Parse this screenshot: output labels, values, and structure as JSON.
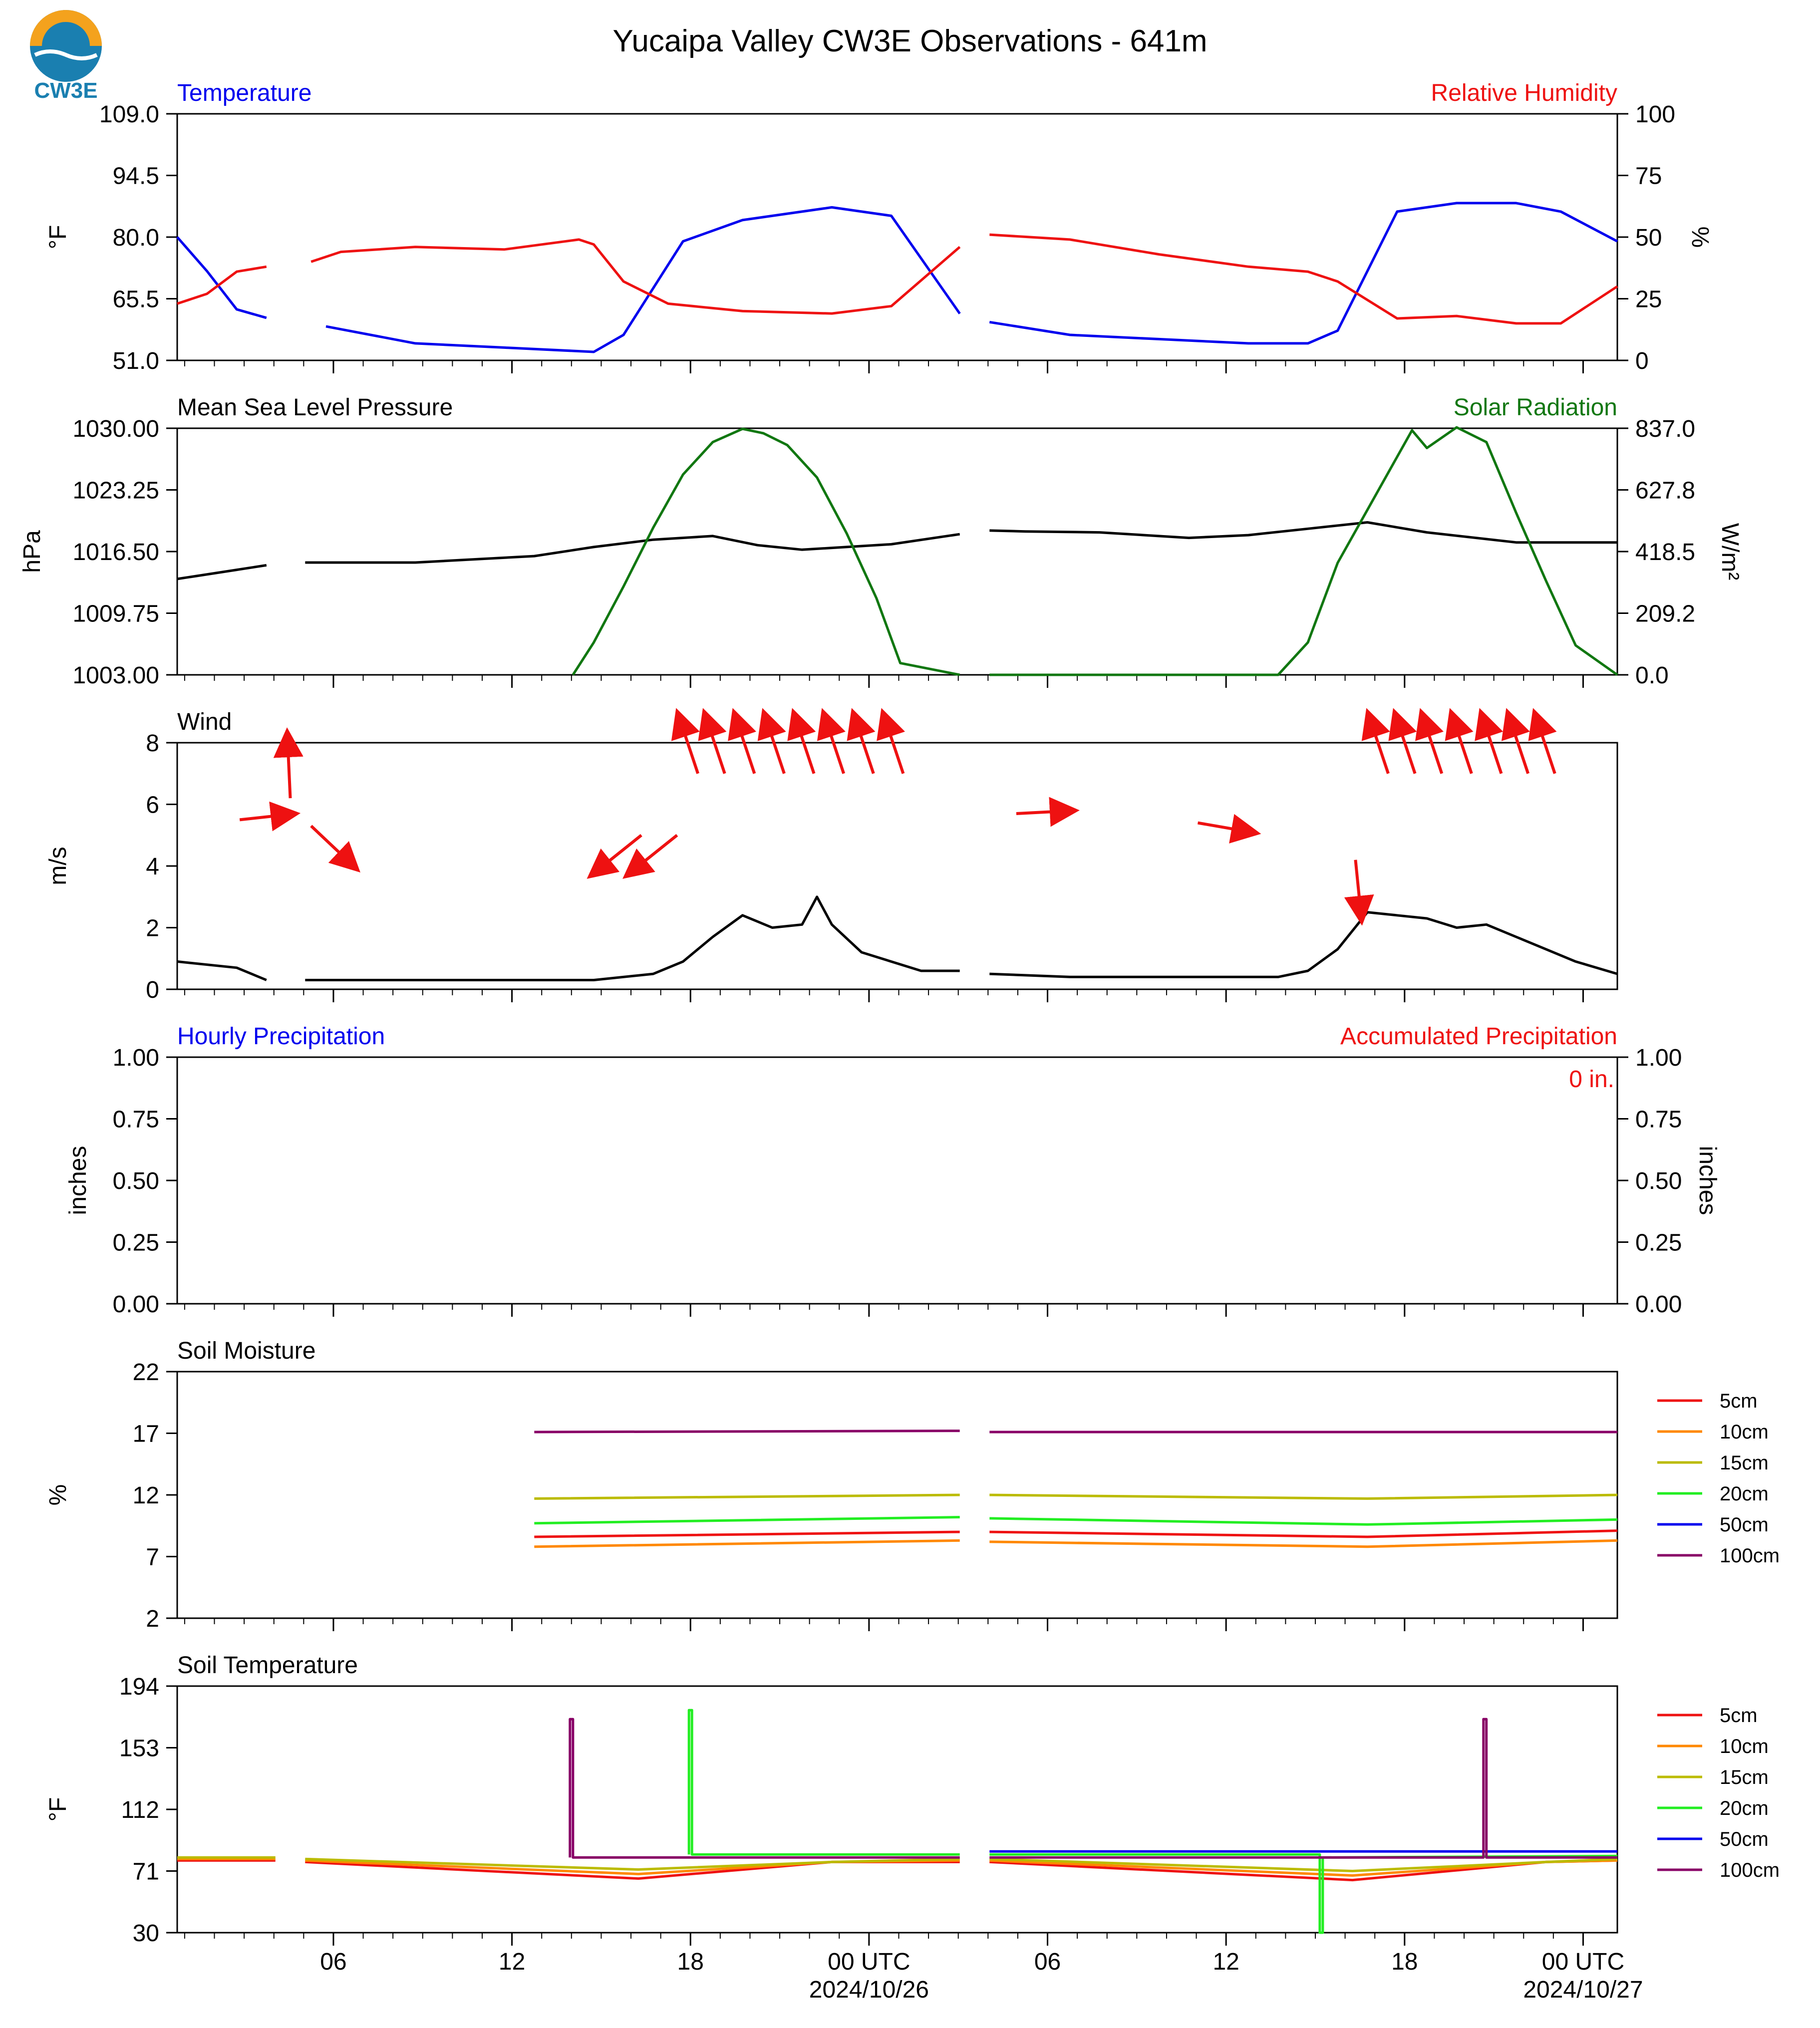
{
  "page": {
    "title": "Yucaipa Valley CW3E Observations - 641m",
    "logo_text": "CW3E",
    "colors": {
      "blue": "#0000ee",
      "red": "#ee1111",
      "green": "#117711",
      "black": "#000000",
      "logo": "#1a7fb0",
      "logo_orange": "#f4a21d"
    }
  },
  "time_axis": {
    "start_hour": 0,
    "end_hour": 48.4,
    "tick_labels": [
      {
        "h": 5.25,
        "lines": [
          "06"
        ]
      },
      {
        "h": 11.25,
        "lines": [
          "12"
        ]
      },
      {
        "h": 17.25,
        "lines": [
          "18"
        ]
      },
      {
        "h": 23.25,
        "lines": [
          "00 UTC",
          "2024/10/26"
        ]
      },
      {
        "h": 29.25,
        "lines": [
          "06"
        ]
      },
      {
        "h": 35.25,
        "lines": [
          "12"
        ]
      },
      {
        "h": 41.25,
        "lines": [
          "18"
        ]
      },
      {
        "h": 47.25,
        "lines": [
          "00 UTC",
          "2024/10/27"
        ]
      }
    ],
    "gaps": [
      [
        3.3,
        4.3
      ],
      [
        26.4,
        27.3
      ]
    ]
  },
  "chart_data": [
    {
      "type": "line",
      "left_title": "Temperature",
      "right_title": "Relative Humidity",
      "ylabel": "°F",
      "ylabel_right": "%",
      "ylim": [
        51.0,
        109.0
      ],
      "ylim_right": [
        0,
        100
      ],
      "yticks": [
        "51.0",
        "65.5",
        "80.0",
        "94.5",
        "109.0"
      ],
      "yticks_right": [
        "0",
        "25",
        "50",
        "75",
        "100"
      ],
      "series": [
        {
          "axis": "left",
          "color": "#0000ee",
          "x": [
            0,
            1,
            2,
            3,
            5,
            8,
            11,
            14,
            15,
            17,
            19,
            22,
            24,
            26.3,
            27.3,
            30,
            33,
            36,
            38,
            39,
            41,
            43,
            45,
            46.5,
            48.4
          ],
          "y": [
            80,
            72,
            63,
            61,
            59,
            55,
            54,
            53,
            57,
            79,
            84,
            87,
            85,
            62,
            60,
            57,
            56,
            55,
            55,
            58,
            86,
            88,
            88,
            86,
            79
          ]
        },
        {
          "axis": "right",
          "color": "#ee1111",
          "x": [
            0,
            1,
            2,
            3,
            4.5,
            5.5,
            8,
            11,
            13.5,
            14,
            15,
            16.5,
            19,
            22,
            24,
            26.3,
            27.3,
            30,
            33,
            36,
            38,
            39,
            41,
            43,
            45,
            46.5,
            48.4
          ],
          "y": [
            23,
            27,
            36,
            38,
            40,
            44,
            46,
            45,
            49,
            47,
            32,
            23,
            20,
            19,
            22,
            46,
            51,
            49,
            43,
            38,
            36,
            32,
            17,
            18,
            15,
            15,
            30
          ]
        }
      ]
    },
    {
      "type": "line",
      "left_title": "Mean Sea Level Pressure",
      "right_title": "Solar Radiation",
      "ylabel": "hPa",
      "ylabel_right": "W/m²",
      "ylim": [
        1003.0,
        1030.0
      ],
      "ylim_right": [
        0,
        837.0
      ],
      "yticks": [
        "1003.00",
        "1009.75",
        "1016.50",
        "1023.25",
        "1030.00"
      ],
      "yticks_right": [
        "0.0",
        "209.2",
        "418.5",
        "627.8",
        "837.0"
      ],
      "series": [
        {
          "axis": "left",
          "color": "#000000",
          "x": [
            0,
            2,
            3,
            4.3,
            8,
            12,
            14,
            16,
            18,
            19.5,
            21,
            24,
            26.3,
            27.3,
            28.5,
            31,
            34,
            36,
            38,
            40,
            42,
            45,
            48.4
          ],
          "y": [
            1013.5,
            1014.5,
            1015,
            1015.3,
            1015.3,
            1016,
            1017,
            1017.8,
            1018.2,
            1017.2,
            1016.7,
            1017.3,
            1018.4,
            1018.8,
            1018.7,
            1018.6,
            1018,
            1018.3,
            1019,
            1019.7,
            1018.6,
            1017.5,
            1017.5
          ]
        },
        {
          "axis": "right",
          "color": "#117711",
          "x": [
            0,
            13.3,
            14,
            15,
            16,
            17,
            18,
            19,
            19.7,
            20.5,
            21.5,
            22.5,
            23.5,
            24.3,
            26.3,
            27.3,
            37,
            38,
            39,
            40,
            41,
            41.5,
            42,
            43,
            44,
            45,
            46,
            47,
            48.4
          ],
          "y": [
            0,
            0,
            110,
            300,
            500,
            680,
            790,
            835,
            820,
            780,
            670,
            480,
            260,
            40,
            0,
            0,
            0,
            110,
            380,
            560,
            740,
            830,
            770,
            840,
            790,
            550,
            320,
            100,
            0
          ]
        }
      ]
    },
    {
      "type": "line",
      "left_title": "Wind",
      "ylabel": "m/s",
      "ylim": [
        0,
        8
      ],
      "yticks": [
        "0",
        "2",
        "4",
        "6",
        "8"
      ],
      "series": [
        {
          "axis": "left",
          "color": "#000000",
          "x": [
            0,
            2,
            3,
            4.3,
            8,
            12,
            14,
            16,
            17,
            18,
            19,
            20,
            21,
            21.5,
            22,
            23,
            25,
            26.3,
            27.3,
            30,
            34,
            37,
            38,
            39,
            40,
            41,
            42,
            43,
            44,
            45,
            46,
            47,
            48.4
          ],
          "y": [
            0.9,
            0.7,
            0.3,
            0.3,
            0.3,
            0.3,
            0.3,
            0.5,
            0.9,
            1.7,
            2.4,
            2.0,
            2.1,
            3.0,
            2.1,
            1.2,
            0.6,
            0.6,
            0.5,
            0.4,
            0.4,
            0.4,
            0.6,
            1.3,
            2.5,
            2.4,
            2.3,
            2.0,
            2.1,
            1.7,
            1.3,
            0.9,
            0.5
          ]
        }
      ],
      "wind_arrows": {
        "color": "#ee1111",
        "items": [
          {
            "h": 2.1,
            "y": 5.5
          },
          {
            "h": 3.8,
            "y": 6.2
          },
          {
            "h": 4.5,
            "y": 5.3
          },
          {
            "h": 15.6,
            "y": 5.0
          },
          {
            "h": 16.8,
            "y": 5.0
          },
          {
            "h": 17.5,
            "y": 7.0
          },
          {
            "h": 18.4,
            "y": 7.0
          },
          {
            "h": 19.4,
            "y": 7.0
          },
          {
            "h": 20.4,
            "y": 7.0
          },
          {
            "h": 21.4,
            "y": 7.0
          },
          {
            "h": 22.4,
            "y": 7.0
          },
          {
            "h": 23.4,
            "y": 7.0
          },
          {
            "h": 24.4,
            "y": 7.0
          },
          {
            "h": 28.2,
            "y": 5.7
          },
          {
            "h": 34.3,
            "y": 5.4
          },
          {
            "h": 39.6,
            "y": 4.2
          },
          {
            "h": 40.7,
            "y": 7.0
          },
          {
            "h": 41.6,
            "y": 7.0
          },
          {
            "h": 42.5,
            "y": 7.0
          },
          {
            "h": 43.5,
            "y": 7.0
          },
          {
            "h": 44.5,
            "y": 7.0
          },
          {
            "h": 45.4,
            "y": 7.0
          },
          {
            "h": 46.3,
            "y": 7.0
          }
        ]
      }
    },
    {
      "type": "line",
      "left_title": "Hourly Precipitation",
      "right_title": "Accumulated Precipitation",
      "annotation": "0 in.",
      "ylabel": "inches",
      "ylabel_right": "inches",
      "ylim": [
        0,
        1.0
      ],
      "ylim_right": [
        0,
        1.0
      ],
      "yticks": [
        "0.00",
        "0.25",
        "0.50",
        "0.75",
        "1.00"
      ],
      "yticks_right": [
        "0.00",
        "0.25",
        "0.50",
        "0.75",
        "1.00"
      ],
      "series": [
        {
          "axis": "left",
          "color": "#ee1111",
          "x": [
            0,
            48.4
          ],
          "y": [
            0,
            0
          ]
        }
      ]
    },
    {
      "type": "line",
      "left_title": "Soil Moisture",
      "ylabel": "%",
      "ylim": [
        2,
        22
      ],
      "yticks": [
        "2",
        "7",
        "12",
        "17",
        "22"
      ],
      "legend": [
        "5cm",
        "10cm",
        "15cm",
        "20cm",
        "50cm",
        "100cm"
      ],
      "series": [
        {
          "name": "5cm",
          "color": "#ee1111",
          "x": [
            0,
            12,
            26.3,
            27.3,
            40,
            48.4
          ],
          "y": [
            9.0,
            8.6,
            9.0,
            9.0,
            8.6,
            9.1
          ]
        },
        {
          "name": "10cm",
          "color": "#ff8800",
          "x": [
            0,
            12,
            26.3,
            27.3,
            40,
            48.4
          ],
          "y": [
            8.2,
            7.8,
            8.3,
            8.2,
            7.8,
            8.3
          ]
        },
        {
          "name": "15cm",
          "color": "#bbbb00",
          "x": [
            0,
            12,
            26.3,
            27.3,
            40,
            48.4
          ],
          "y": [
            12.1,
            11.7,
            12.0,
            12.0,
            11.7,
            12.0
          ]
        },
        {
          "name": "20cm",
          "color": "#22ee22",
          "x": [
            0,
            12,
            26.3,
            27.3,
            40,
            48.4
          ],
          "y": [
            10.2,
            9.7,
            10.2,
            10.1,
            9.6,
            10.0
          ]
        },
        {
          "name": "100cm",
          "color": "#880066",
          "x": [
            0,
            12,
            26.3,
            27.3,
            40,
            48.4
          ],
          "y": [
            17.2,
            17.1,
            17.2,
            17.1,
            17.1,
            17.1
          ]
        }
      ]
    },
    {
      "type": "line",
      "left_title": "Soil Temperature",
      "ylabel": "°F",
      "ylim": [
        30,
        194
      ],
      "yticks": [
        "30",
        "71",
        "112",
        "153",
        "194"
      ],
      "legend": [
        "5cm",
        "10cm",
        "15cm",
        "20cm",
        "50cm",
        "100cm"
      ],
      "series": [
        {
          "name": "5cm",
          "color": "#ee1111",
          "x": [
            0,
            3.3,
            4.3,
            15.5,
            22,
            26.3,
            27.3,
            39.5,
            46,
            48.4
          ],
          "y": [
            78,
            78,
            77,
            66,
            77,
            77,
            77,
            65,
            77,
            78
          ]
        },
        {
          "name": "10cm",
          "color": "#ff8800",
          "x": [
            0,
            3.3,
            4.3,
            15.5,
            22,
            26.3,
            27.3,
            39.5,
            46,
            48.4
          ],
          "y": [
            79,
            79,
            78,
            69,
            77,
            78,
            78,
            68,
            77,
            78
          ]
        },
        {
          "name": "15cm",
          "color": "#bbbb00",
          "x": [
            0,
            3.3,
            4.3,
            15.5,
            22,
            26.3,
            27.3,
            39.5,
            46,
            48.4
          ],
          "y": [
            80,
            80,
            79,
            72,
            77,
            79,
            79,
            71,
            77,
            79
          ]
        },
        {
          "name": "20cm",
          "color": "#22ee22",
          "x": [
            0,
            17.2,
            17.2,
            17.3,
            17.3,
            26.3,
            27.3,
            38.4,
            38.4,
            38.5,
            38.5,
            48.4
          ],
          "y": [
            82,
            82,
            178,
            178,
            82,
            82,
            82,
            82,
            30,
            30,
            80,
            81
          ]
        },
        {
          "name": "50cm",
          "color": "#0000ee",
          "x": [
            0,
            26.3,
            27.3,
            48.4
          ],
          "y": [
            84,
            84,
            84,
            84
          ]
        },
        {
          "name": "100cm",
          "color": "#880066",
          "x": [
            0,
            13.2,
            13.2,
            13.3,
            13.3,
            26.3,
            27.3,
            43.9,
            43.9,
            44.0,
            44.0,
            48.4
          ],
          "y": [
            80,
            80,
            172,
            172,
            80,
            80,
            80,
            80,
            172,
            172,
            80,
            80
          ]
        }
      ]
    }
  ]
}
